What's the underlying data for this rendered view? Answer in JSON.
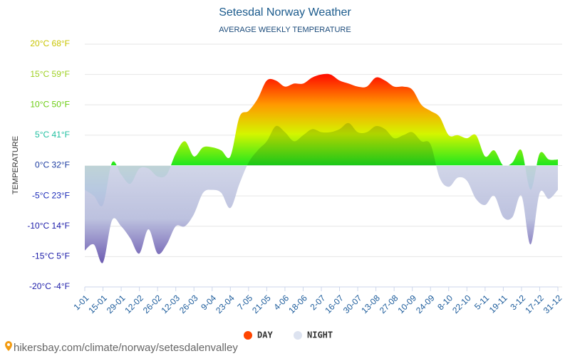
{
  "chart_data": {
    "type": "area",
    "title": "Setesdal Norway Weather",
    "subtitle": "AVERAGE WEEKLY TEMPERATURE",
    "y_label": "TEMPERATURE",
    "categories": [
      "1-01",
      null,
      "15-01",
      null,
      "29-01",
      null,
      "12-02",
      null,
      "26-02",
      null,
      "12-03",
      null,
      "26-03",
      null,
      "9-04",
      null,
      "23-04",
      null,
      "7-05",
      null,
      "21-05",
      null,
      "4-06",
      null,
      "18-06",
      null,
      "2-07",
      null,
      "16-07",
      null,
      "30-07",
      null,
      "13-08",
      null,
      "27-08",
      null,
      "10-09",
      null,
      "24-09",
      null,
      "8-10",
      null,
      "22-10",
      null,
      "5-11",
      null,
      "19-11",
      null,
      "3-12",
      null,
      "17-12",
      null,
      "31-12"
    ],
    "series": [
      {
        "name": "DAY",
        "color": "#ff4500",
        "values": [
          -4,
          -5,
          -6.5,
          0.5,
          -1.5,
          -3,
          -0.5,
          -0.5,
          -1.8,
          -1.5,
          2,
          4,
          1.5,
          3,
          3,
          2.5,
          1.5,
          8,
          9,
          11,
          14,
          14,
          13,
          13.5,
          13.5,
          14.5,
          15,
          15,
          14,
          13.5,
          13,
          13,
          14.5,
          14,
          13,
          13,
          12.5,
          10,
          9,
          8,
          5,
          5,
          4.5,
          5,
          1.5,
          2.5,
          0,
          0.5,
          2.5,
          -4,
          2,
          1,
          1
        ]
      },
      {
        "name": "NIGHT",
        "color": "#dde3f0",
        "values": [
          -14,
          -13,
          -16,
          -9,
          -10,
          -12,
          -14.5,
          -10.5,
          -14.5,
          -13,
          -10,
          -10,
          -8,
          -4.5,
          -4,
          -4.5,
          -7,
          -3,
          0.5,
          2.5,
          4,
          6.5,
          5.5,
          4,
          5,
          6,
          5.5,
          5.5,
          6,
          7,
          5.5,
          5.5,
          6.5,
          6,
          4.5,
          5,
          5.5,
          4,
          3.5,
          -2,
          -3.5,
          -2,
          -2.5,
          -5.5,
          -6.5,
          -5,
          -8.5,
          -8.5,
          -5,
          -13,
          -4.5,
          -5.5,
          -4
        ]
      }
    ],
    "ylim": [
      -20,
      20
    ],
    "yticks": [
      {
        "value": -20,
        "label": "-20°C -4°F"
      },
      {
        "value": -15,
        "label": "-15°C 5°F"
      },
      {
        "value": -10,
        "label": "-10°C 14°F"
      },
      {
        "value": -5,
        "label": "-5°C 23°F"
      },
      {
        "value": 0,
        "label": "0°C 32°F"
      },
      {
        "value": 5,
        "label": "5°C 41°F"
      },
      {
        "value": 10,
        "label": "10°C 50°F"
      },
      {
        "value": 15,
        "label": "15°C 59°F"
      },
      {
        "value": 20,
        "label": "20°C 68°F"
      }
    ],
    "grid": true,
    "legend": "bottom",
    "source": "hikersbay.com/climate/norway/setesdalenvalley"
  }
}
